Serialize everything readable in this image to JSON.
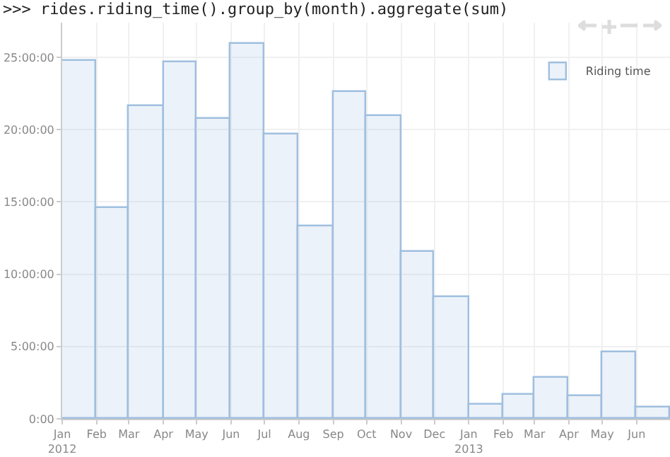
{
  "chart_data": {
    "type": "histogram",
    "title": ">>> rides.riding_time().group_by(month).aggregate(sum)",
    "bins": [
      "2012-01",
      "2012-02",
      "2012-03",
      "2012-04",
      "2012-05",
      "2012-06",
      "2012-07",
      "2012-08",
      "2012-09",
      "2012-10",
      "2012-11",
      "2012-12",
      "2013-01",
      "2013-02",
      "2013-03",
      "2013-04",
      "2013-05",
      "2013-06",
      "2013-07"
    ],
    "series": [
      {
        "name": "Riding time",
        "color": "#9fbfe0",
        "values": [
          24.8,
          14.6,
          21.6,
          24.7,
          20.7,
          25.9,
          19.7,
          13.3,
          22.6,
          20.9,
          11.5,
          8.4,
          1.0,
          1.7,
          2.8,
          1.6,
          4.6,
          0.8
        ]
      }
    ],
    "xlim": [
      "2012-01",
      "2013-07"
    ],
    "xticks": [
      {
        "value": "2012-01",
        "label": "Jan\n2012"
      },
      {
        "value": "2012-02",
        "label": "Feb"
      },
      {
        "value": "2012-03",
        "label": "Mar"
      },
      {
        "value": "2012-04",
        "label": "Apr"
      },
      {
        "value": "2012-05",
        "label": "May"
      },
      {
        "value": "2012-06",
        "label": "Jun"
      },
      {
        "value": "2012-07",
        "label": "Jul"
      },
      {
        "value": "2012-08",
        "label": "Aug"
      },
      {
        "value": "2012-09",
        "label": "Sep"
      },
      {
        "value": "2012-10",
        "label": "Oct"
      },
      {
        "value": "2012-11",
        "label": "Nov"
      },
      {
        "value": "2012-12",
        "label": "Dec"
      },
      {
        "value": "2013-01",
        "label": "Jan\n2013"
      },
      {
        "value": "2013-02",
        "label": "Feb"
      },
      {
        "value": "2013-03",
        "label": "Mar"
      },
      {
        "value": "2013-04",
        "label": "Apr"
      },
      {
        "value": "2013-05",
        "label": "May"
      },
      {
        "value": "2013-06",
        "label": "Jun"
      }
    ],
    "ylim": [
      0,
      27.4
    ],
    "yticks": [
      {
        "value": 0,
        "label": "0:00"
      },
      {
        "value": 5,
        "label": "5:00:00"
      },
      {
        "value": 10,
        "label": "10:00:00"
      },
      {
        "value": 15,
        "label": "15:00:00"
      },
      {
        "value": 20,
        "label": "20:00:00"
      },
      {
        "value": 25,
        "label": "25:00:00"
      }
    ],
    "grid": true,
    "legend": "top right"
  }
}
